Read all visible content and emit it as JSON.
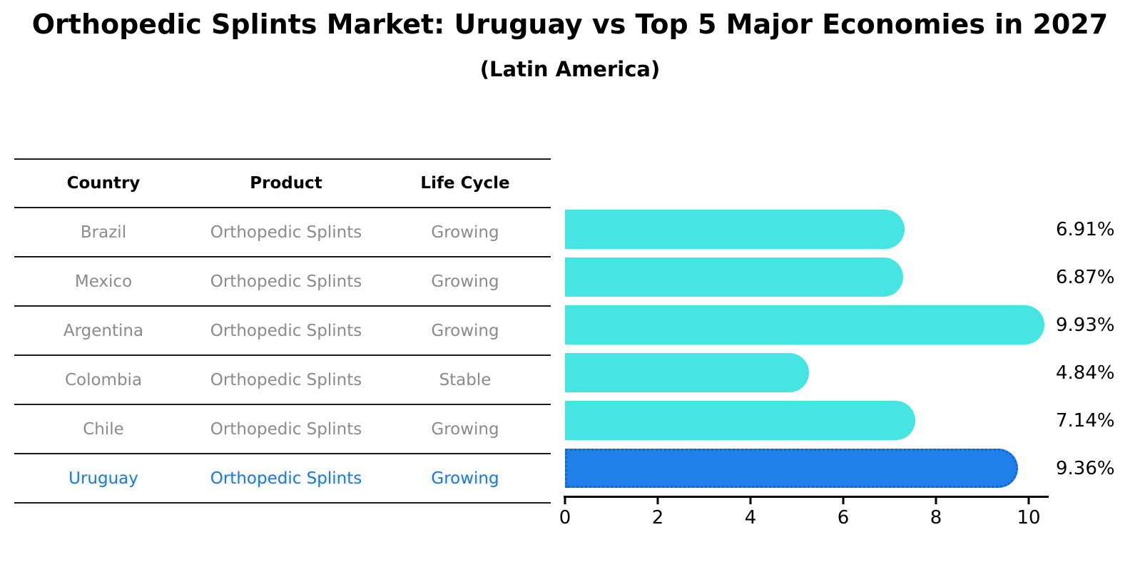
{
  "title": "Orthopedic Splints Market: Uruguay vs Top 5 Major Economies in 2027",
  "subtitle": "(Latin America)",
  "table": {
    "headers": [
      "Country",
      "Product",
      "Life Cycle"
    ],
    "rows": [
      {
        "country": "Brazil",
        "product": "Orthopedic Splints",
        "life_cycle": "Growing"
      },
      {
        "country": "Mexico",
        "product": "Orthopedic Splints",
        "life_cycle": "Growing"
      },
      {
        "country": "Argentina",
        "product": "Orthopedic Splints",
        "life_cycle": "Growing"
      },
      {
        "country": "Colombia",
        "product": "Orthopedic Splints",
        "life_cycle": "Stable"
      },
      {
        "country": "Chile",
        "product": "Orthopedic Splints",
        "life_cycle": "Growing"
      },
      {
        "country": "Uruguay",
        "product": "Orthopedic Splints",
        "life_cycle": "Growing"
      }
    ],
    "highlight_row": "Uruguay"
  },
  "chart_data": {
    "type": "bar",
    "orientation": "horizontal",
    "title": "Orthopedic Splints Market: Uruguay vs Top 5 Major Economies in 2027",
    "subtitle": "(Latin America)",
    "categories": [
      "Brazil",
      "Mexico",
      "Argentina",
      "Colombia",
      "Chile",
      "Uruguay"
    ],
    "values": [
      6.91,
      6.87,
      9.93,
      4.84,
      7.14,
      9.36
    ],
    "value_labels": [
      "6.91%",
      "6.87%",
      "9.93%",
      "4.84%",
      "7.14%",
      "9.36%"
    ],
    "xlabel": "",
    "ylabel": "",
    "xlim": [
      0,
      10.4
    ],
    "xticks": [
      "0",
      "2",
      "4",
      "6",
      "8",
      "10"
    ],
    "grid": false,
    "legend": null,
    "bar_color": "#45e6e1",
    "highlight_bar_color": "#1e80e8",
    "highlight_index": 5
  },
  "colors": {
    "background": "#ffffff",
    "row_text": "#8b8b8b",
    "header_text": "#000000",
    "highlight_text": "#2878c8",
    "table_line": "#1a1a1a",
    "axis": "#000000",
    "bar": "#45e6e1",
    "highlight_bar": "#1e80e8",
    "highlight_bar_border": "#1565c8"
  }
}
